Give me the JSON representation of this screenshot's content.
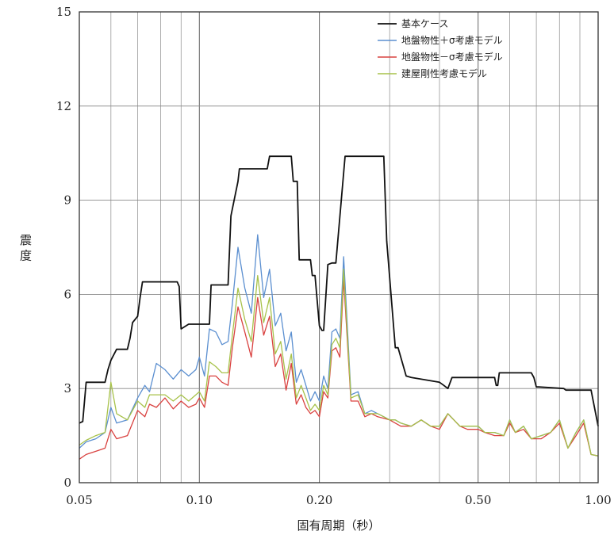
{
  "chart_data": {
    "type": "line",
    "title": "",
    "xlabel": "固有周期（秒）",
    "ylabel": "震 度",
    "x_scale": "log",
    "xlim": [
      0.05,
      1.0
    ],
    "ylim": [
      0,
      15
    ],
    "x_ticks": [
      0.05,
      0.1,
      0.2,
      0.5,
      1.0
    ],
    "x_tick_labels": [
      "0.05",
      "0.10",
      "0.20",
      "0.50",
      "1.00"
    ],
    "y_ticks": [
      0,
      3,
      6,
      9,
      12,
      15
    ],
    "y_tick_labels": [
      "0",
      "3",
      "6",
      "9",
      "12",
      "15"
    ],
    "grid": true,
    "legend_position": "top-right",
    "series": [
      {
        "name": "基本ケース",
        "color": "#111111",
        "x": [
          0.05,
          0.051,
          0.052,
          0.058,
          0.059,
          0.06,
          0.062,
          0.066,
          0.067,
          0.068,
          0.07,
          0.071,
          0.072,
          0.088,
          0.089,
          0.09,
          0.094,
          0.095,
          0.096,
          0.105,
          0.106,
          0.107,
          0.109,
          0.11,
          0.117,
          0.118,
          0.12,
          0.125,
          0.126,
          0.148,
          0.15,
          0.16,
          0.162,
          0.17,
          0.172,
          0.176,
          0.178,
          0.19,
          0.192,
          0.195,
          0.2,
          0.203,
          0.205,
          0.21,
          0.215,
          0.22,
          0.232,
          0.235,
          0.24,
          0.28,
          0.29,
          0.295,
          0.31,
          0.315,
          0.33,
          0.34,
          0.4,
          0.41,
          0.42,
          0.43,
          0.55,
          0.555,
          0.56,
          0.565,
          0.57,
          0.68,
          0.69,
          0.7,
          0.71,
          0.82,
          0.83,
          0.96,
          1.0
        ],
        "values": [
          1.9,
          1.95,
          3.2,
          3.2,
          3.6,
          3.9,
          4.25,
          4.25,
          4.6,
          5.1,
          5.3,
          5.9,
          6.4,
          6.4,
          6.25,
          4.9,
          5.05,
          5.05,
          5.05,
          5.05,
          5.05,
          6.3,
          6.3,
          6.3,
          6.3,
          6.3,
          8.5,
          9.6,
          10.0,
          10.0,
          10.4,
          10.4,
          10.4,
          10.4,
          9.6,
          9.6,
          7.1,
          7.1,
          6.6,
          6.6,
          5.0,
          4.85,
          4.85,
          6.95,
          7.0,
          7.0,
          10.4,
          10.4,
          10.4,
          10.4,
          10.4,
          7.7,
          4.3,
          4.3,
          3.4,
          3.35,
          3.2,
          3.1,
          3.0,
          3.35,
          3.35,
          3.1,
          3.1,
          3.5,
          3.5,
          3.5,
          3.35,
          3.05,
          3.05,
          3.0,
          2.95,
          2.95,
          1.8
        ]
      },
      {
        "name": "地盤物性＋σ考慮モデル",
        "color": "#5b8fd0",
        "x": [
          0.05,
          0.052,
          0.055,
          0.058,
          0.06,
          0.062,
          0.066,
          0.07,
          0.073,
          0.075,
          0.078,
          0.082,
          0.086,
          0.09,
          0.094,
          0.098,
          0.1,
          0.103,
          0.106,
          0.11,
          0.114,
          0.118,
          0.121,
          0.125,
          0.13,
          0.135,
          0.14,
          0.145,
          0.15,
          0.155,
          0.16,
          0.165,
          0.17,
          0.175,
          0.18,
          0.185,
          0.19,
          0.195,
          0.2,
          0.205,
          0.21,
          0.215,
          0.22,
          0.225,
          0.23,
          0.24,
          0.25,
          0.26,
          0.27,
          0.28,
          0.29,
          0.3,
          0.31,
          0.32,
          0.34,
          0.36,
          0.38,
          0.4,
          0.42,
          0.45,
          0.47,
          0.5,
          0.52,
          0.55,
          0.58,
          0.6,
          0.62,
          0.65,
          0.68,
          0.72,
          0.76,
          0.8,
          0.84,
          0.88,
          0.92,
          0.96,
          1.0
        ],
        "values": [
          1.1,
          1.3,
          1.4,
          1.6,
          2.4,
          1.9,
          2.0,
          2.7,
          3.1,
          2.9,
          3.8,
          3.6,
          3.3,
          3.6,
          3.4,
          3.6,
          4.0,
          3.4,
          4.9,
          4.8,
          4.4,
          4.5,
          5.7,
          7.5,
          6.2,
          5.4,
          7.9,
          5.9,
          6.8,
          5.0,
          5.4,
          4.2,
          4.8,
          3.2,
          3.6,
          3.1,
          2.6,
          2.9,
          2.6,
          3.4,
          3.0,
          4.8,
          4.9,
          4.6,
          7.2,
          2.8,
          2.9,
          2.2,
          2.3,
          2.2,
          2.1,
          2.0,
          2.0,
          1.9,
          1.8,
          2.0,
          1.8,
          1.8,
          2.2,
          1.8,
          1.8,
          1.8,
          1.6,
          1.6,
          1.5,
          2.0,
          1.6,
          1.8,
          1.4,
          1.5,
          1.6,
          2.0,
          1.1,
          1.6,
          2.0,
          0.9,
          0.85
        ]
      },
      {
        "name": "地盤物性－σ考慮モデル",
        "color": "#d9413f",
        "x": [
          0.05,
          0.052,
          0.055,
          0.058,
          0.06,
          0.062,
          0.066,
          0.07,
          0.073,
          0.075,
          0.078,
          0.082,
          0.086,
          0.09,
          0.094,
          0.098,
          0.1,
          0.103,
          0.106,
          0.11,
          0.114,
          0.118,
          0.121,
          0.125,
          0.13,
          0.135,
          0.14,
          0.145,
          0.15,
          0.155,
          0.16,
          0.165,
          0.17,
          0.175,
          0.18,
          0.185,
          0.19,
          0.195,
          0.2,
          0.205,
          0.21,
          0.215,
          0.22,
          0.225,
          0.23,
          0.24,
          0.25,
          0.26,
          0.27,
          0.28,
          0.29,
          0.3,
          0.31,
          0.32,
          0.34,
          0.36,
          0.38,
          0.4,
          0.42,
          0.45,
          0.47,
          0.5,
          0.52,
          0.55,
          0.58,
          0.6,
          0.62,
          0.65,
          0.68,
          0.72,
          0.76,
          0.8,
          0.84,
          0.88,
          0.92,
          0.96,
          1.0
        ],
        "values": [
          0.75,
          0.9,
          1.0,
          1.1,
          1.7,
          1.4,
          1.5,
          2.3,
          2.1,
          2.5,
          2.4,
          2.7,
          2.35,
          2.6,
          2.4,
          2.5,
          2.7,
          2.4,
          3.4,
          3.4,
          3.2,
          3.1,
          4.3,
          5.6,
          4.8,
          4.0,
          5.9,
          4.7,
          5.3,
          3.7,
          4.1,
          2.95,
          3.8,
          2.5,
          2.8,
          2.4,
          2.2,
          2.3,
          2.1,
          2.9,
          2.7,
          4.2,
          4.3,
          4.0,
          6.5,
          2.6,
          2.6,
          2.1,
          2.2,
          2.1,
          2.05,
          2.0,
          1.9,
          1.8,
          1.8,
          2.0,
          1.8,
          1.7,
          2.2,
          1.8,
          1.7,
          1.7,
          1.6,
          1.5,
          1.5,
          1.9,
          1.6,
          1.7,
          1.4,
          1.4,
          1.6,
          1.9,
          1.1,
          1.5,
          1.9,
          0.9,
          0.85
        ]
      },
      {
        "name": "建屋剛性考慮モデル",
        "color": "#a7c24a",
        "x": [
          0.05,
          0.052,
          0.055,
          0.058,
          0.06,
          0.062,
          0.066,
          0.07,
          0.073,
          0.075,
          0.078,
          0.082,
          0.086,
          0.09,
          0.094,
          0.098,
          0.1,
          0.103,
          0.106,
          0.11,
          0.114,
          0.118,
          0.121,
          0.125,
          0.13,
          0.135,
          0.14,
          0.145,
          0.15,
          0.155,
          0.16,
          0.165,
          0.17,
          0.175,
          0.18,
          0.185,
          0.19,
          0.195,
          0.2,
          0.205,
          0.21,
          0.215,
          0.22,
          0.225,
          0.23,
          0.24,
          0.25,
          0.26,
          0.27,
          0.28,
          0.29,
          0.3,
          0.31,
          0.32,
          0.34,
          0.36,
          0.38,
          0.4,
          0.42,
          0.45,
          0.47,
          0.5,
          0.52,
          0.55,
          0.58,
          0.6,
          0.62,
          0.65,
          0.68,
          0.72,
          0.76,
          0.8,
          0.84,
          0.88,
          0.92,
          0.96,
          1.0
        ],
        "values": [
          1.2,
          1.35,
          1.5,
          1.6,
          3.2,
          2.2,
          2.0,
          2.6,
          2.4,
          2.8,
          2.8,
          2.8,
          2.6,
          2.8,
          2.6,
          2.8,
          2.9,
          2.6,
          3.85,
          3.7,
          3.5,
          3.5,
          4.7,
          6.2,
          5.2,
          4.5,
          6.6,
          5.1,
          5.9,
          4.1,
          4.5,
          3.3,
          4.1,
          2.7,
          3.1,
          2.7,
          2.3,
          2.5,
          2.3,
          3.1,
          2.8,
          4.4,
          4.6,
          4.3,
          6.8,
          2.7,
          2.8,
          2.2,
          2.2,
          2.2,
          2.1,
          2.0,
          2.0,
          1.9,
          1.8,
          2.0,
          1.8,
          1.8,
          2.2,
          1.8,
          1.8,
          1.8,
          1.6,
          1.6,
          1.5,
          2.0,
          1.6,
          1.8,
          1.4,
          1.5,
          1.6,
          2.0,
          1.1,
          1.6,
          2.0,
          0.9,
          0.85
        ]
      }
    ]
  }
}
